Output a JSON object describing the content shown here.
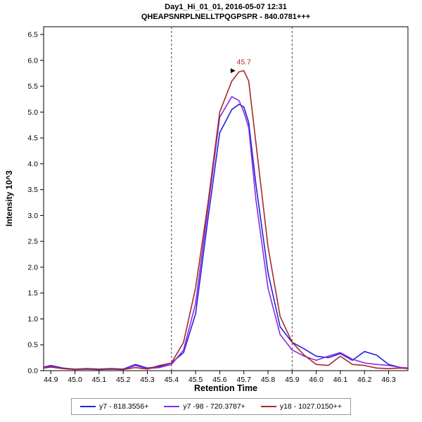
{
  "title": {
    "line1": "Day1_Hi_01_01, 2016-05-07 12:31",
    "line2": "QHEAPSNRPLNELLTPQGPSPR - 840.0781+++"
  },
  "axes": {
    "x_label": "Retention Time",
    "y_label": "Intensity 10^3",
    "x_ticks": [
      44.9,
      45.0,
      45.1,
      45.2,
      45.3,
      45.4,
      45.5,
      45.6,
      45.7,
      45.8,
      45.9,
      46.0,
      46.1,
      46.2,
      46.3
    ],
    "y_ticks": [
      0.0,
      0.5,
      1.0,
      1.5,
      2.0,
      2.5,
      3.0,
      3.5,
      4.0,
      4.5,
      5.0,
      5.5,
      6.0,
      6.5
    ]
  },
  "chart_data": {
    "type": "line",
    "title": "Day1_Hi_01_01, 2016-05-07 12:31 / QHEAPSNRPLNELLTPQGPSPR - 840.0781+++",
    "xlabel": "Retention Time",
    "ylabel": "Intensity 10^3",
    "xlim": [
      44.87,
      46.38
    ],
    "ylim": [
      0,
      6.65
    ],
    "grid": false,
    "legend_position": "bottom",
    "boundaries": [
      45.4,
      45.9
    ],
    "annotation": {
      "text": "45.7",
      "x": 45.7,
      "y": 5.92,
      "marker_x": 45.645,
      "marker_y": 5.8,
      "color": "#A52A2A"
    },
    "x": [
      44.87,
      44.9,
      44.95,
      45.0,
      45.05,
      45.1,
      45.15,
      45.2,
      45.25,
      45.3,
      45.35,
      45.4,
      45.45,
      45.5,
      45.55,
      45.6,
      45.65,
      45.68,
      45.7,
      45.72,
      45.75,
      45.8,
      45.85,
      45.9,
      45.95,
      46.0,
      46.05,
      46.1,
      46.15,
      46.2,
      46.25,
      46.3,
      46.35,
      46.38
    ],
    "series": [
      {
        "name": "y7 - 818.3556+",
        "color": "#2222DD",
        "values": [
          0.07,
          0.1,
          0.05,
          0.03,
          0.04,
          0.03,
          0.04,
          0.03,
          0.12,
          0.05,
          0.08,
          0.15,
          0.35,
          1.1,
          2.9,
          4.6,
          5.05,
          5.15,
          5.1,
          4.8,
          3.6,
          1.9,
          0.85,
          0.55,
          0.42,
          0.28,
          0.25,
          0.33,
          0.2,
          0.37,
          0.3,
          0.12,
          0.06,
          0.05
        ]
      },
      {
        "name": "y7 -98 - 720.3787+",
        "color": "#8A2BE2",
        "values": [
          0.06,
          0.08,
          0.04,
          0.03,
          0.03,
          0.02,
          0.03,
          0.02,
          0.1,
          0.04,
          0.06,
          0.12,
          0.4,
          1.3,
          3.1,
          4.9,
          5.3,
          5.22,
          5.0,
          4.7,
          3.3,
          1.6,
          0.7,
          0.4,
          0.28,
          0.2,
          0.28,
          0.35,
          0.22,
          0.15,
          0.12,
          0.1,
          0.06,
          0.05
        ]
      },
      {
        "name": "y18 - 1027.0150++",
        "color": "#A52A2A",
        "values": [
          0.05,
          0.07,
          0.04,
          0.02,
          0.03,
          0.02,
          0.03,
          0.02,
          0.06,
          0.03,
          0.1,
          0.15,
          0.55,
          1.6,
          3.2,
          5.0,
          5.6,
          5.78,
          5.8,
          5.6,
          4.4,
          2.4,
          1.05,
          0.55,
          0.3,
          0.12,
          0.1,
          0.28,
          0.12,
          0.1,
          0.05,
          0.04,
          0.05,
          0.04
        ]
      }
    ]
  },
  "legend": {
    "items": [
      {
        "label": "y7 - 818.3556+",
        "color": "#2222DD"
      },
      {
        "label": "y7 -98 - 720.3787+",
        "color": "#8A2BE2"
      },
      {
        "label": "y18 - 1027.0150++",
        "color": "#A52A2A"
      }
    ]
  }
}
